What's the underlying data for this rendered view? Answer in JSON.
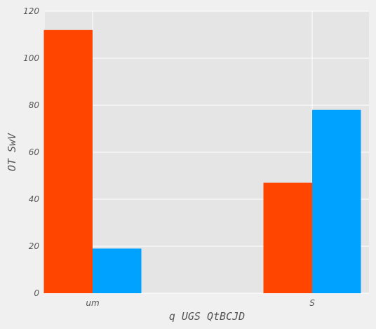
{
  "chart_data": {
    "type": "bar",
    "title": "",
    "xlabel": "q UGS QtBCJD",
    "ylabel": "OT SwV",
    "categories": [
      "um",
      "S"
    ],
    "series": [
      {
        "values": [
          112,
          47
        ],
        "color": "#ff4500"
      },
      {
        "values": [
          19,
          78
        ],
        "color": "#00a2ff"
      }
    ],
    "ylim": [
      0,
      120
    ],
    "yticks": [
      0,
      20,
      40,
      60,
      80,
      100,
      120
    ],
    "grid": true,
    "legend": "none",
    "plot_background": "#e5e5e5",
    "grid_color": "#ffffff"
  }
}
